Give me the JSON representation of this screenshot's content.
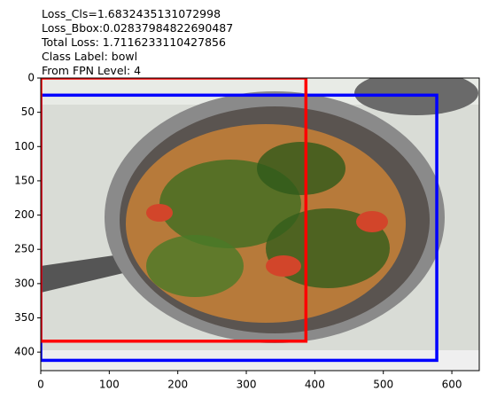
{
  "chart_data": {
    "type": "image",
    "annotations": [
      "Loss_Cls=1.6832435131072998",
      "Loss_Bbox:0.02837984822690487",
      "Total Loss: 1.7116233110427856",
      "Class Label: bowl",
      "From FPN Level: 4"
    ],
    "xlim": [
      0,
      640
    ],
    "ylim": [
      427,
      0
    ],
    "xticks": [
      0,
      100,
      200,
      300,
      400,
      500,
      600
    ],
    "yticks": [
      0,
      50,
      100,
      150,
      200,
      250,
      300,
      350,
      400
    ],
    "boxes": [
      {
        "color": "#0000ff",
        "x0": 0,
        "y0": 25,
        "x1": 578,
        "y1": 412
      },
      {
        "color": "#ff0000",
        "x0": 0,
        "y0": 0,
        "x1": 387,
        "y1": 384
      }
    ]
  }
}
